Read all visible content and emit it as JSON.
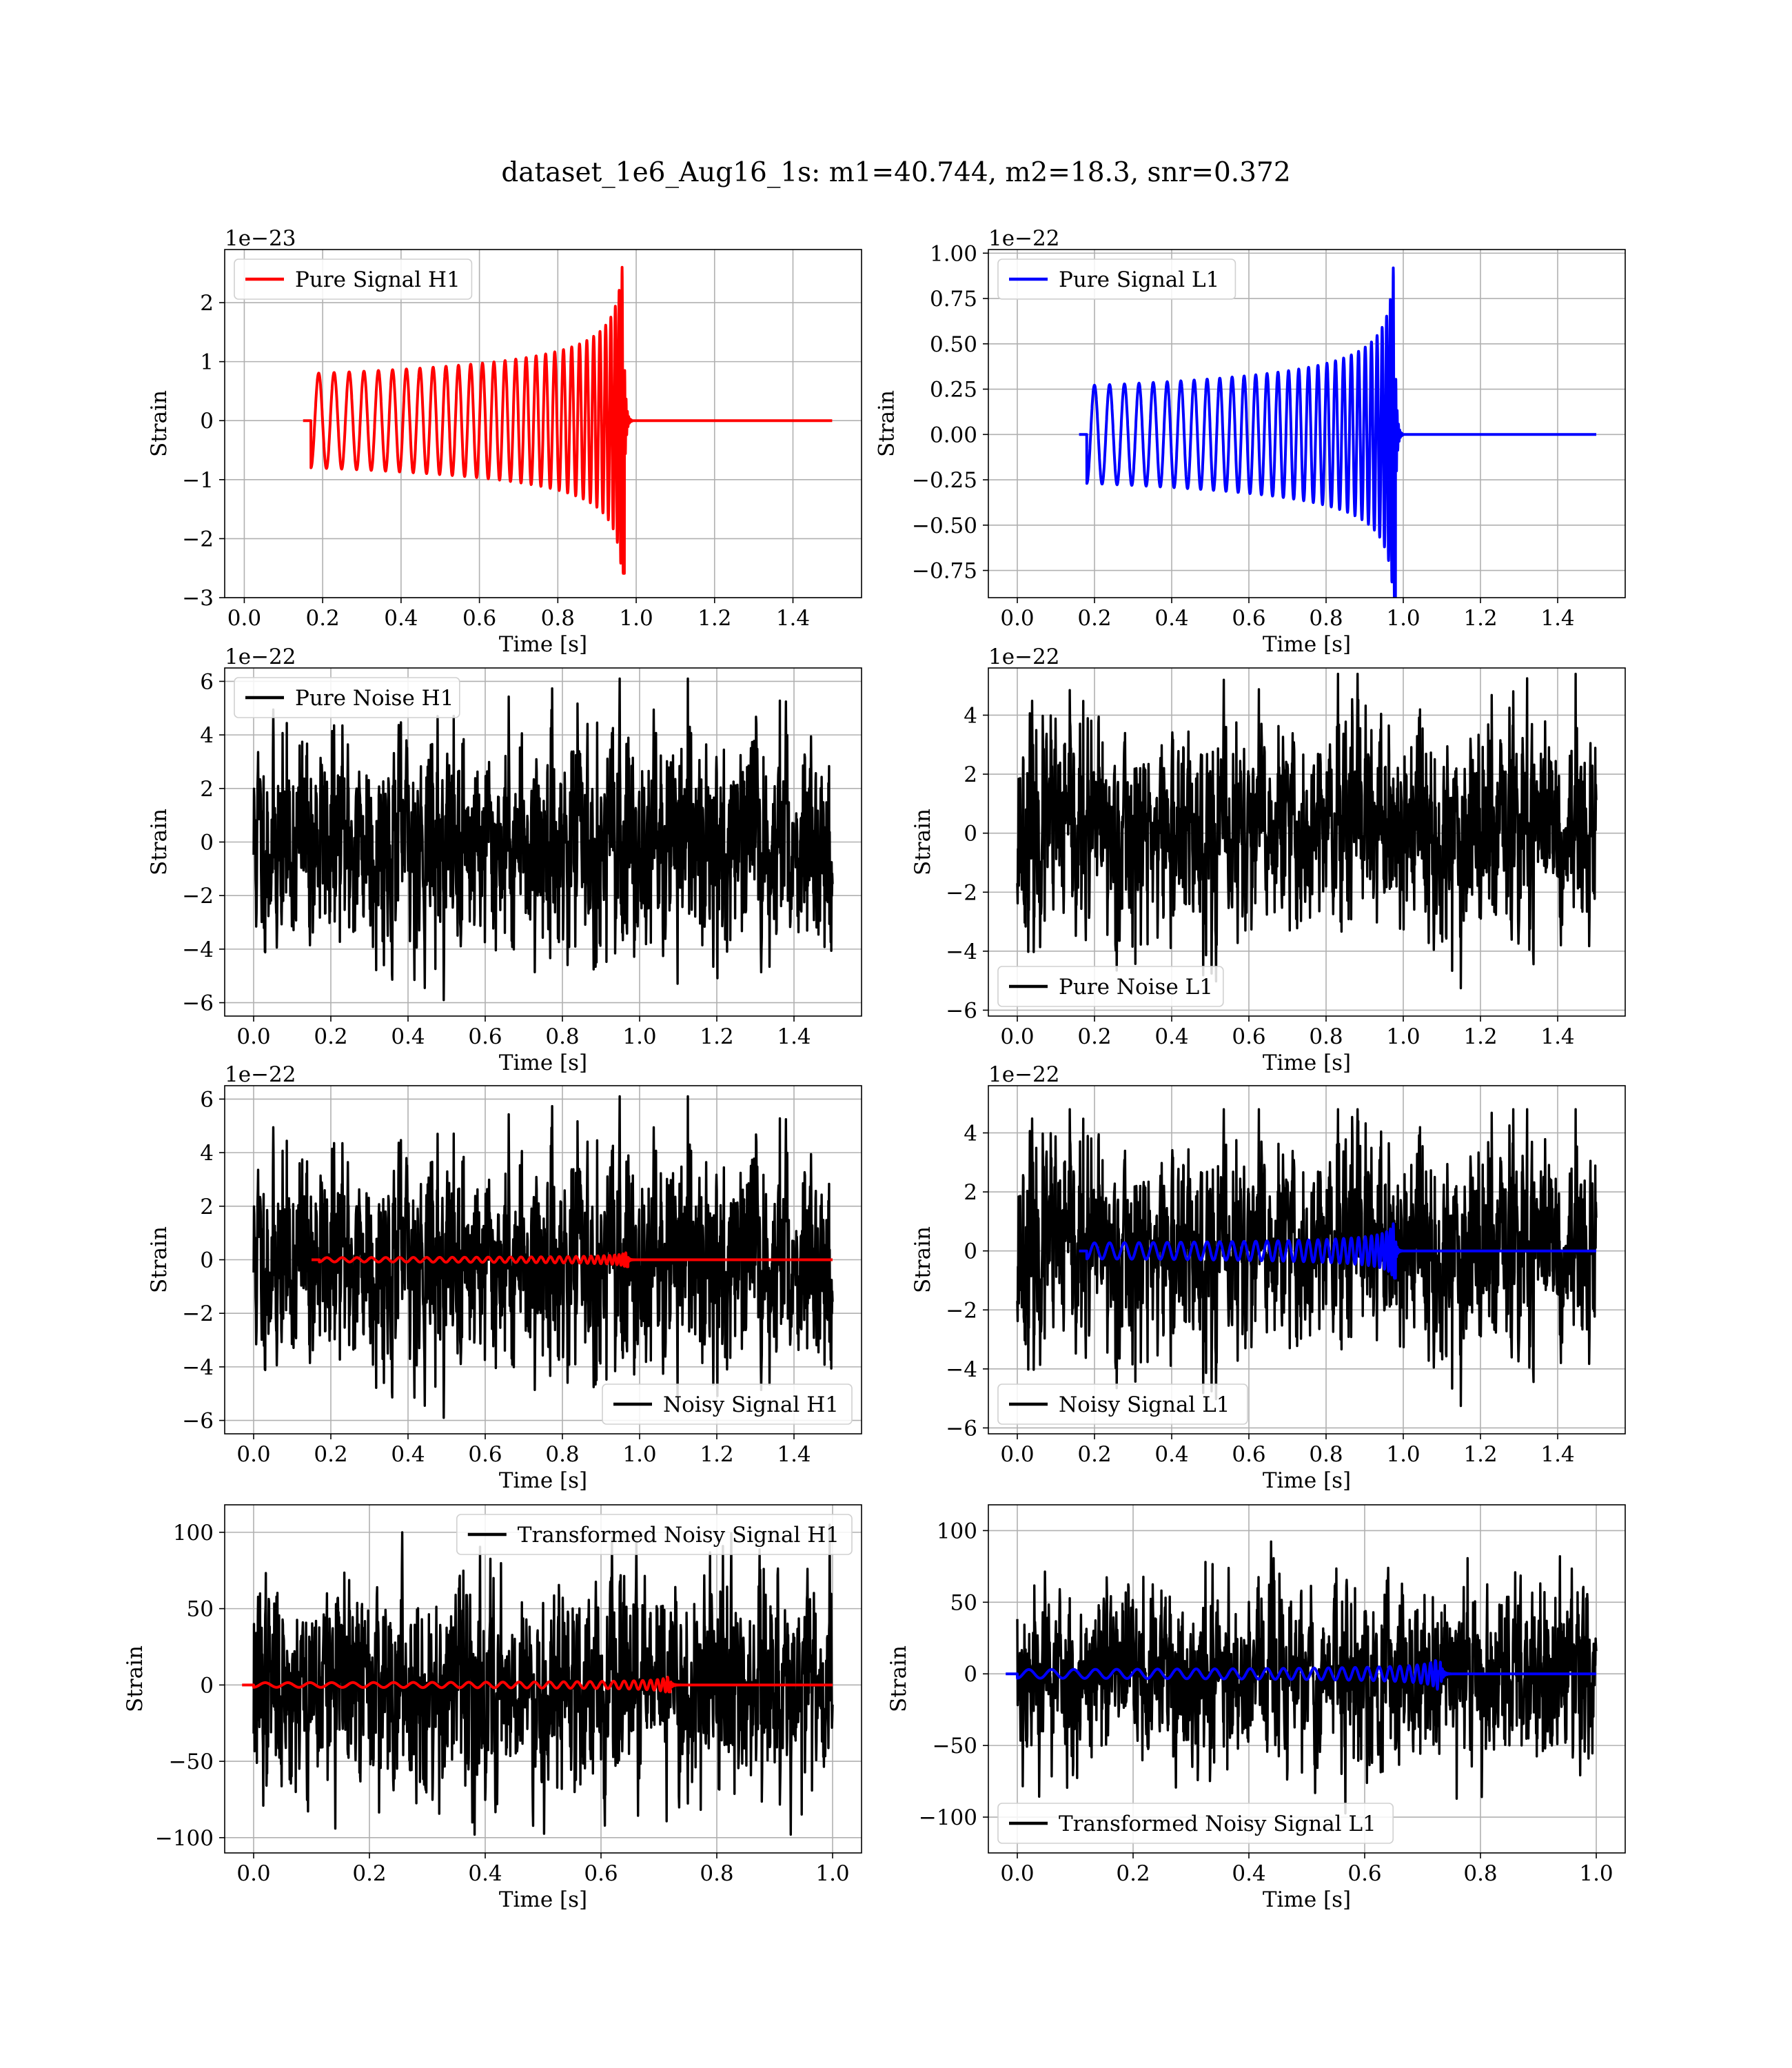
{
  "figure": {
    "title": "dataset_1e6_Aug16_1s: m1=40.744, m2=18.3, snr=0.372"
  },
  "colors": {
    "h1": "#ff0000",
    "l1": "#0000ff",
    "noise": "#000000",
    "grid": "#b0b0b0"
  },
  "chart_data": [
    {
      "id": "pure-signal-h1",
      "type": "line",
      "title": "",
      "xlabel": "Time [s]",
      "ylabel": "Strain",
      "offset_label": "1e−23",
      "xlim": [
        -0.05,
        1.575
      ],
      "ylim": [
        -3.0,
        2.9
      ],
      "xticks": [
        0.0,
        0.2,
        0.4,
        0.6,
        0.8,
        1.0,
        1.2,
        1.4
      ],
      "xtick_labels": [
        "0.0",
        "0.2",
        "0.4",
        "0.6",
        "0.8",
        "1.0",
        "1.2",
        "1.4"
      ],
      "yticks": [
        -3,
        -2,
        -1,
        0,
        1,
        2
      ],
      "ytick_labels": [
        "−3",
        "−2",
        "−1",
        "0",
        "1",
        "2"
      ],
      "grid": true,
      "legend_position": "upper-left",
      "series": [
        {
          "name": "Pure Signal H1",
          "color": "#ff0000",
          "kind": "chirp",
          "t_start": 0.17,
          "t_merge": 0.97,
          "t_end": 1.5,
          "amplitude": 0.8,
          "peak_amplitude": 2.6,
          "in_legend": true
        }
      ]
    },
    {
      "id": "pure-signal-l1",
      "type": "line",
      "title": "",
      "xlabel": "Time [s]",
      "ylabel": "Strain",
      "offset_label": "1e−22",
      "xlim": [
        -0.075,
        1.575
      ],
      "ylim": [
        -0.9,
        1.02
      ],
      "xticks": [
        0.0,
        0.2,
        0.4,
        0.6,
        0.8,
        1.0,
        1.2,
        1.4
      ],
      "xtick_labels": [
        "0.0",
        "0.2",
        "0.4",
        "0.6",
        "0.8",
        "1.0",
        "1.2",
        "1.4"
      ],
      "yticks": [
        -0.75,
        -0.5,
        -0.25,
        0.0,
        0.25,
        0.5,
        0.75,
        1.0
      ],
      "ytick_labels": [
        "−0.75",
        "−0.50",
        "−0.25",
        "0.00",
        "0.25",
        "0.50",
        "0.75",
        "1.00"
      ],
      "grid": true,
      "legend_position": "upper-left",
      "series": [
        {
          "name": "Pure Signal L1",
          "color": "#0000ff",
          "kind": "chirp",
          "t_start": 0.18,
          "t_merge": 0.98,
          "t_end": 1.5,
          "amplitude": 0.27,
          "peak_amplitude": 0.93,
          "in_legend": true
        }
      ]
    },
    {
      "id": "pure-noise-h1",
      "type": "line",
      "title": "",
      "xlabel": "Time [s]",
      "ylabel": "Strain",
      "offset_label": "1e−22",
      "xlim": [
        -0.075,
        1.575
      ],
      "ylim": [
        -6.5,
        6.5
      ],
      "xticks": [
        0.0,
        0.2,
        0.4,
        0.6,
        0.8,
        1.0,
        1.2,
        1.4
      ],
      "xtick_labels": [
        "0.0",
        "0.2",
        "0.4",
        "0.6",
        "0.8",
        "1.0",
        "1.2",
        "1.4"
      ],
      "yticks": [
        -6,
        -4,
        -2,
        0,
        2,
        4,
        6
      ],
      "ytick_labels": [
        "−6",
        "−4",
        "−2",
        "0",
        "2",
        "4",
        "6"
      ],
      "grid": true,
      "legend_position": "upper-left",
      "series": [
        {
          "name": "Pure Noise H1",
          "color": "#000000",
          "kind": "noise",
          "t_start": 0.0,
          "t_end": 1.5,
          "sigma": 1.9,
          "min": -5.9,
          "max": 6.1,
          "seed": 11,
          "in_legend": true
        }
      ]
    },
    {
      "id": "pure-noise-l1",
      "type": "line",
      "title": "",
      "xlabel": "Time [s]",
      "ylabel": "Strain",
      "offset_label": "1e−22",
      "xlim": [
        -0.075,
        1.575
      ],
      "ylim": [
        -6.2,
        5.6
      ],
      "xticks": [
        0.0,
        0.2,
        0.4,
        0.6,
        0.8,
        1.0,
        1.2,
        1.4
      ],
      "xtick_labels": [
        "0.0",
        "0.2",
        "0.4",
        "0.6",
        "0.8",
        "1.0",
        "1.2",
        "1.4"
      ],
      "yticks": [
        -6,
        -4,
        -2,
        0,
        2,
        4
      ],
      "ytick_labels": [
        "−6",
        "−4",
        "−2",
        "0",
        "2",
        "4"
      ],
      "grid": true,
      "legend_position": "lower-left",
      "series": [
        {
          "name": "Pure Noise L1",
          "color": "#000000",
          "kind": "noise",
          "t_start": 0.0,
          "t_end": 1.5,
          "sigma": 1.7,
          "min": -5.8,
          "max": 5.4,
          "seed": 23,
          "in_legend": true
        }
      ]
    },
    {
      "id": "noisy-signal-h1",
      "type": "line",
      "title": "",
      "xlabel": "Time [s]",
      "ylabel": "Strain",
      "offset_label": "1e−22",
      "xlim": [
        -0.075,
        1.575
      ],
      "ylim": [
        -6.5,
        6.5
      ],
      "xticks": [
        0.0,
        0.2,
        0.4,
        0.6,
        0.8,
        1.0,
        1.2,
        1.4
      ],
      "xtick_labels": [
        "0.0",
        "0.2",
        "0.4",
        "0.6",
        "0.8",
        "1.0",
        "1.2",
        "1.4"
      ],
      "yticks": [
        -6,
        -4,
        -2,
        0,
        2,
        4,
        6
      ],
      "ytick_labels": [
        "−6",
        "−4",
        "−2",
        "0",
        "2",
        "4",
        "6"
      ],
      "grid": true,
      "legend_position": "lower-right",
      "series": [
        {
          "name": "Noisy Signal H1",
          "color": "#000000",
          "kind": "noise",
          "t_start": 0.0,
          "t_end": 1.5,
          "sigma": 1.9,
          "min": -5.9,
          "max": 6.1,
          "seed": 11,
          "in_legend": true
        },
        {
          "name": "",
          "color": "#ff0000",
          "kind": "chirp",
          "t_start": 0.17,
          "t_merge": 0.97,
          "t_end": 1.5,
          "amplitude": 0.08,
          "peak_amplitude": 0.26,
          "in_legend": false
        }
      ]
    },
    {
      "id": "noisy-signal-l1",
      "type": "line",
      "title": "",
      "xlabel": "Time [s]",
      "ylabel": "Strain",
      "offset_label": "1e−22",
      "xlim": [
        -0.075,
        1.575
      ],
      "ylim": [
        -6.2,
        5.6
      ],
      "xticks": [
        0.0,
        0.2,
        0.4,
        0.6,
        0.8,
        1.0,
        1.2,
        1.4
      ],
      "xtick_labels": [
        "0.0",
        "0.2",
        "0.4",
        "0.6",
        "0.8",
        "1.0",
        "1.2",
        "1.4"
      ],
      "yticks": [
        -6,
        -4,
        -2,
        0,
        2,
        4
      ],
      "ytick_labels": [
        "−6",
        "−4",
        "−2",
        "0",
        "2",
        "4"
      ],
      "grid": true,
      "legend_position": "lower-left",
      "series": [
        {
          "name": "Noisy Signal L1",
          "color": "#000000",
          "kind": "noise",
          "t_start": 0.0,
          "t_end": 1.5,
          "sigma": 1.7,
          "min": -6.2,
          "max": 4.8,
          "seed": 23,
          "in_legend": true
        },
        {
          "name": "",
          "color": "#0000ff",
          "kind": "chirp",
          "t_start": 0.18,
          "t_merge": 0.98,
          "t_end": 1.5,
          "amplitude": 0.27,
          "peak_amplitude": 0.93,
          "in_legend": false
        }
      ]
    },
    {
      "id": "transformed-noisy-signal-h1",
      "type": "line",
      "title": "",
      "xlabel": "Time [s]",
      "ylabel": "Strain",
      "offset_label": "",
      "xlim": [
        -0.05,
        1.05
      ],
      "ylim": [
        -110,
        118
      ],
      "xticks": [
        0.0,
        0.2,
        0.4,
        0.6,
        0.8,
        1.0
      ],
      "xtick_labels": [
        "0.0",
        "0.2",
        "0.4",
        "0.6",
        "0.8",
        "1.0"
      ],
      "yticks": [
        -100,
        -50,
        0,
        50,
        100
      ],
      "ytick_labels": [
        "−100",
        "−50",
        "0",
        "50",
        "100"
      ],
      "grid": true,
      "legend_position": "upper-right",
      "series": [
        {
          "name": "Transformed Noisy Signal H1",
          "color": "#000000",
          "kind": "noise",
          "t_start": 0.0,
          "t_end": 1.0,
          "sigma": 32,
          "min": -98,
          "max": 115,
          "seed": 37,
          "in_legend": true
        },
        {
          "name": "",
          "color": "#ff0000",
          "kind": "chirp",
          "t_start": 0.0,
          "t_merge": 0.72,
          "t_end": 1.0,
          "amplitude": 1.5,
          "peak_amplitude": 6,
          "in_legend": false
        }
      ]
    },
    {
      "id": "transformed-noisy-signal-l1",
      "type": "line",
      "title": "",
      "xlabel": "Time [s]",
      "ylabel": "Strain",
      "offset_label": "",
      "xlim": [
        -0.05,
        1.05
      ],
      "ylim": [
        -125,
        118
      ],
      "xticks": [
        0.0,
        0.2,
        0.4,
        0.6,
        0.8,
        1.0
      ],
      "xtick_labels": [
        "0.0",
        "0.2",
        "0.4",
        "0.6",
        "0.8",
        "1.0"
      ],
      "yticks": [
        -100,
        -50,
        0,
        50,
        100
      ],
      "ytick_labels": [
        "−100",
        "−50",
        "0",
        "50",
        "100"
      ],
      "grid": true,
      "legend_position": "lower-left",
      "series": [
        {
          "name": "Transformed Noisy Signal L1",
          "color": "#000000",
          "kind": "noise",
          "t_start": 0.0,
          "t_end": 1.0,
          "sigma": 30,
          "min": -120,
          "max": 105,
          "seed": 53,
          "in_legend": true
        },
        {
          "name": "",
          "color": "#0000ff",
          "kind": "chirp",
          "t_start": 0.0,
          "t_merge": 0.73,
          "t_end": 1.0,
          "amplitude": 3,
          "peak_amplitude": 25,
          "in_legend": false
        }
      ]
    }
  ]
}
